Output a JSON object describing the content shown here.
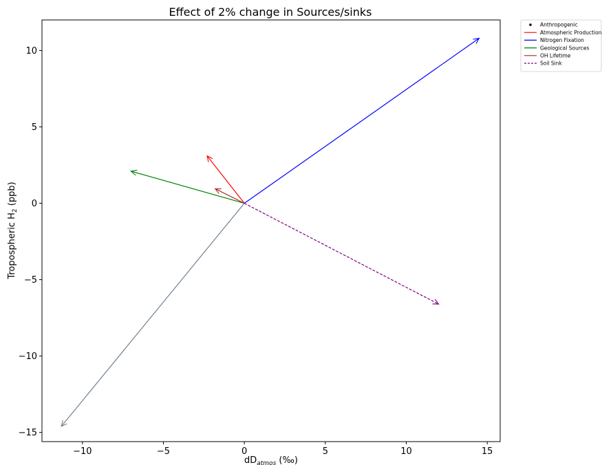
{
  "chart_data": {
    "type": "vector",
    "title": "Effect of 2% change in Sources/sinks",
    "xlabel": "dD",
    "xlabel_sub": "atmos",
    "xlabel_unit": " (‰)",
    "ylabel": "Tropospheric H",
    "ylabel_sub": "2",
    "ylabel_unit": " (ppb)",
    "xlim": [
      -12.5,
      15.8
    ],
    "ylim": [
      -15.6,
      12.0
    ],
    "xticks": [
      -10,
      -5,
      0,
      5,
      10,
      15
    ],
    "yticks": [
      -15,
      -10,
      -5,
      0,
      5,
      10
    ],
    "xtick_labels": [
      "−10",
      "−5",
      "0",
      "5",
      "10",
      "15"
    ],
    "ytick_labels": [
      "−15",
      "−10",
      "−5",
      "0",
      "5",
      "10"
    ],
    "grid": false,
    "legend_position": "outside-top-right",
    "series": [
      {
        "name": "Anthropogenic",
        "color": "#708090",
        "style": "solid",
        "marker": "dot",
        "x": [
          0,
          -11.3
        ],
        "y": [
          0,
          -14.6
        ]
      },
      {
        "name": "Atmospheric Production",
        "color": "#ff0000",
        "style": "solid",
        "x": [
          0,
          -2.3
        ],
        "y": [
          0,
          3.1
        ]
      },
      {
        "name": "Nitrogen Fixation",
        "color": "#0000ff",
        "style": "solid",
        "x": [
          0,
          14.5
        ],
        "y": [
          0,
          10.8
        ]
      },
      {
        "name": "Geological Sources",
        "color": "#008000",
        "style": "solid",
        "x": [
          0,
          -7.0
        ],
        "y": [
          0,
          2.1
        ]
      },
      {
        "name": "OH Lifetime",
        "color": "#a52a2a",
        "style": "solid",
        "x": [
          0,
          -1.8
        ],
        "y": [
          0,
          0.95
        ]
      },
      {
        "name": "Soil Sink",
        "color": "#800080",
        "style": "dashed",
        "x": [
          0,
          12.0
        ],
        "y": [
          0,
          -6.6
        ]
      }
    ]
  }
}
